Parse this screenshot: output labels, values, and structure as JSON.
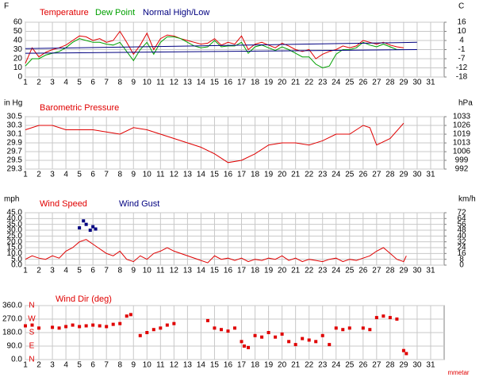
{
  "chart_data": [
    {
      "type": "line",
      "ylabel": "F",
      "y2label": "C",
      "xlim": [
        1,
        32
      ],
      "xticks": [
        1,
        2,
        3,
        4,
        5,
        6,
        7,
        8,
        9,
        10,
        11,
        12,
        13,
        14,
        15,
        16,
        17,
        18,
        19,
        20,
        21,
        22,
        23,
        24,
        25,
        26,
        27,
        28,
        29,
        30,
        31
      ],
      "ylim": [
        0,
        60
      ],
      "yticks": [
        0,
        10,
        20,
        30,
        40,
        50,
        60
      ],
      "y2lim": [
        -17.78,
        15.56
      ],
      "y2ticks": [
        {
          "value": 15.56,
          "label": "16"
        },
        {
          "value": 10,
          "label": "10"
        },
        {
          "value": 4.44,
          "label": "4"
        },
        {
          "value": -1.11,
          "label": "-1"
        },
        {
          "value": -6.67,
          "label": "-7"
        },
        {
          "value": -12.22,
          "label": "-12"
        },
        {
          "value": -17.78,
          "label": "-18"
        }
      ],
      "series": [
        {
          "name": "Temperature",
          "color": "#e00000",
          "x": [
            1,
            1.5,
            2,
            2.5,
            3,
            3.5,
            4,
            4.5,
            5,
            5.5,
            6,
            6.5,
            7,
            7.5,
            8,
            8.5,
            9,
            9.5,
            10,
            10.5,
            11,
            11.5,
            12,
            12.5,
            13,
            13.5,
            14,
            14.5,
            15,
            15.5,
            16,
            16.5,
            17,
            17.5,
            18,
            18.5,
            19,
            19.5,
            20,
            20.5,
            21,
            21.5,
            22,
            22.5,
            23,
            23.5,
            24,
            24.5,
            25,
            25.5,
            26,
            26.5,
            27,
            27.5,
            28,
            28.5,
            29
          ],
          "values": [
            15,
            32,
            22,
            27,
            30,
            32,
            35,
            40,
            45,
            44,
            40,
            42,
            38,
            40,
            50,
            38,
            25,
            35,
            48,
            30,
            42,
            46,
            45,
            42,
            40,
            38,
            36,
            37,
            42,
            35,
            38,
            36,
            45,
            30,
            36,
            38,
            35,
            32,
            37,
            34,
            30,
            28,
            30,
            20,
            25,
            28,
            30,
            34,
            32,
            34,
            40,
            38,
            36,
            38,
            35,
            33,
            32
          ]
        },
        {
          "name": "Dew Point",
          "color": "#00a000",
          "x": [
            1,
            1.5,
            2,
            2.5,
            3,
            3.5,
            4,
            4.5,
            5,
            5.5,
            6,
            6.5,
            7,
            7.5,
            8,
            8.5,
            9,
            9.5,
            10,
            10.5,
            11,
            11.5,
            12,
            12.5,
            13,
            13.5,
            14,
            14.5,
            15,
            15.5,
            16,
            16.5,
            17,
            17.5,
            18,
            18.5,
            19,
            19.5,
            20,
            20.5,
            21,
            21.5,
            22,
            22.5,
            23,
            23.5,
            24,
            24.5,
            25,
            25.5,
            26,
            26.5,
            27,
            27.5,
            28,
            28.5,
            29
          ],
          "values": [
            12,
            20,
            20,
            24,
            26,
            28,
            32,
            38,
            42,
            40,
            38,
            38,
            36,
            35,
            38,
            28,
            18,
            30,
            38,
            25,
            38,
            44,
            44,
            42,
            38,
            34,
            32,
            33,
            40,
            33,
            34,
            34,
            38,
            26,
            33,
            35,
            32,
            29,
            33,
            30,
            26,
            22,
            22,
            14,
            10,
            12,
            25,
            30,
            30,
            32,
            38,
            35,
            33,
            36,
            33,
            30,
            30
          ]
        },
        {
          "name": "Normal High/Low",
          "color": "#000080",
          "x": [
            1,
            30
          ],
          "values": [
            31,
            38
          ],
          "low": [
            26,
            30
          ]
        }
      ]
    },
    {
      "type": "line",
      "title": "Barometric Pressure",
      "color": "#e00000",
      "ylabel": "in Hg",
      "y2label": "hPa",
      "xlim": [
        1,
        32
      ],
      "xticks": [
        1,
        2,
        3,
        4,
        5,
        6,
        7,
        8,
        9,
        10,
        11,
        12,
        13,
        14,
        15,
        16,
        17,
        18,
        19,
        20,
        21,
        22,
        23,
        24,
        25,
        26,
        27,
        28,
        29,
        30,
        31
      ],
      "ylim": [
        29.3,
        30.5
      ],
      "yticks": [
        29.3,
        29.5,
        29.7,
        29.9,
        30.1,
        30.3,
        30.5
      ],
      "y2lim": [
        992.2,
        1032.9
      ],
      "y2ticks": [
        {
          "value": 1032.9,
          "label": "1033"
        },
        {
          "value": 1026.1,
          "label": "1026"
        },
        {
          "value": 1019.3,
          "label": "1019"
        },
        {
          "value": 1012.5,
          "label": "1013"
        },
        {
          "value": 1005.7,
          "label": "1006"
        },
        {
          "value": 999,
          "label": "999"
        },
        {
          "value": 992.2,
          "label": "992"
        }
      ],
      "x": [
        1,
        2,
        3,
        4,
        5,
        6,
        7,
        8,
        9,
        10,
        11,
        12,
        13,
        14,
        15,
        16,
        17,
        18,
        19,
        20,
        21,
        22,
        23,
        24,
        25,
        26,
        26.5,
        27,
        28,
        29
      ],
      "values": [
        30.2,
        30.3,
        30.3,
        30.2,
        30.2,
        30.2,
        30.15,
        30.1,
        30.25,
        30.2,
        30.1,
        30.0,
        29.9,
        29.8,
        29.65,
        29.45,
        29.5,
        29.65,
        29.85,
        29.9,
        29.9,
        29.85,
        29.95,
        30.1,
        30.1,
        30.3,
        30.25,
        29.85,
        30.0,
        30.35
      ]
    },
    {
      "type": "line",
      "ylabel": "mph",
      "y2label": "km/h",
      "xlim": [
        1,
        32
      ],
      "xticks": [
        1,
        2,
        3,
        4,
        5,
        6,
        7,
        8,
        9,
        10,
        11,
        12,
        13,
        14,
        15,
        16,
        17,
        18,
        19,
        20,
        21,
        22,
        23,
        24,
        25,
        26,
        27,
        28,
        29,
        30,
        31
      ],
      "ylim": [
        0,
        45
      ],
      "yticks": [
        {
          "value": 0,
          "label": "0.0"
        },
        {
          "value": 5,
          "label": "5.0"
        },
        {
          "value": 10,
          "label": "10.0"
        },
        {
          "value": 15,
          "label": "15.0"
        },
        {
          "value": 20,
          "label": "20.0"
        },
        {
          "value": 25,
          "label": "25.0"
        },
        {
          "value": 30,
          "label": "30.0"
        },
        {
          "value": 35,
          "label": "35.0"
        },
        {
          "value": 40,
          "label": "40.0"
        },
        {
          "value": 45,
          "label": "45.0"
        }
      ],
      "y2lim": [
        0,
        72.4
      ],
      "y2ticks": [
        {
          "value": 72.4,
          "label": "72"
        },
        {
          "value": 64.4,
          "label": "64"
        },
        {
          "value": 56.3,
          "label": "56"
        },
        {
          "value": 48.3,
          "label": "48"
        },
        {
          "value": 40.2,
          "label": "40"
        },
        {
          "value": 32.2,
          "label": "32"
        },
        {
          "value": 24.1,
          "label": "24"
        },
        {
          "value": 16.1,
          "label": "16"
        },
        {
          "value": 8,
          "label": "8"
        },
        {
          "value": 0,
          "label": "0"
        }
      ],
      "series": [
        {
          "name": "Wind Speed",
          "color": "#e00000",
          "x": [
            1,
            1.5,
            2,
            2.5,
            3,
            3.5,
            4,
            4.5,
            5,
            5.5,
            6,
            6.5,
            7,
            7.5,
            8,
            8.5,
            9,
            9.5,
            10,
            10.5,
            11,
            11.5,
            12,
            14.5,
            15,
            15.5,
            16,
            16.5,
            17,
            17.5,
            18,
            18.5,
            19,
            19.5,
            20,
            20.5,
            21,
            21.5,
            22,
            22.5,
            23,
            23.5,
            24,
            24.5,
            25,
            25.5,
            26,
            26.5,
            27,
            27.5,
            28,
            28.5,
            29,
            29.2
          ],
          "values": [
            5,
            8,
            6,
            5,
            8,
            6,
            12,
            15,
            20,
            22,
            18,
            14,
            10,
            8,
            12,
            5,
            3,
            8,
            5,
            10,
            12,
            15,
            12,
            2,
            8,
            5,
            6,
            4,
            6,
            3,
            5,
            4,
            6,
            5,
            8,
            4,
            6,
            3,
            5,
            4,
            3,
            5,
            6,
            3,
            5,
            4,
            6,
            8,
            12,
            15,
            10,
            5,
            3,
            8
          ]
        },
        {
          "name": "Wind Gust",
          "color": "#000080",
          "style": "points",
          "x": [
            5,
            5.3,
            5.5,
            5.8,
            6,
            6.2
          ],
          "values": [
            32,
            38,
            35,
            30,
            33,
            31
          ]
        }
      ]
    },
    {
      "type": "scatter",
      "title": "Wind Dir (deg)",
      "color": "#e00000",
      "xlim": [
        1,
        32
      ],
      "xticks": [
        1,
        2,
        3,
        4,
        5,
        6,
        7,
        8,
        9,
        10,
        11,
        12,
        13,
        14,
        15,
        16,
        17,
        18,
        19,
        20,
        21,
        22,
        23,
        24,
        25,
        26,
        27,
        28,
        29,
        30,
        31
      ],
      "ylim": [
        0,
        360
      ],
      "yticks": [
        {
          "value": 0,
          "label": "0.0"
        },
        {
          "value": 90,
          "label": "90.0"
        },
        {
          "value": 180,
          "label": "180.0"
        },
        {
          "value": 270,
          "label": "270.0"
        },
        {
          "value": 360,
          "label": "360.0"
        }
      ],
      "compass": [
        {
          "value": 360,
          "label": "N"
        },
        {
          "value": 270,
          "label": "W"
        },
        {
          "value": 180,
          "label": "S"
        },
        {
          "value": 90,
          "label": "E"
        },
        {
          "value": 0,
          "label": "N"
        }
      ],
      "x": [
        1,
        1.5,
        2,
        3,
        3.5,
        4,
        4.5,
        5,
        5.5,
        6,
        6.5,
        7,
        7.5,
        8,
        8.5,
        8.8,
        9.5,
        10,
        10.5,
        11,
        11.5,
        12,
        14.5,
        15,
        15.5,
        16,
        16.5,
        17,
        17.2,
        17.5,
        18,
        18.5,
        19,
        19.5,
        20,
        20.5,
        21,
        21.5,
        22,
        22.5,
        23,
        23.5,
        24,
        24.5,
        25,
        26,
        26.5,
        27,
        27.5,
        28,
        28.5,
        29,
        29.2
      ],
      "values": [
        225,
        230,
        210,
        215,
        210,
        220,
        230,
        220,
        225,
        230,
        225,
        220,
        235,
        240,
        290,
        300,
        160,
        180,
        200,
        210,
        230,
        240,
        260,
        210,
        200,
        190,
        210,
        120,
        90,
        80,
        160,
        150,
        180,
        150,
        170,
        120,
        100,
        140,
        130,
        120,
        160,
        100,
        210,
        200,
        210,
        210,
        200,
        280,
        290,
        280,
        270,
        60,
        40
      ]
    },
    {
      "credit": "mmetar"
    }
  ]
}
